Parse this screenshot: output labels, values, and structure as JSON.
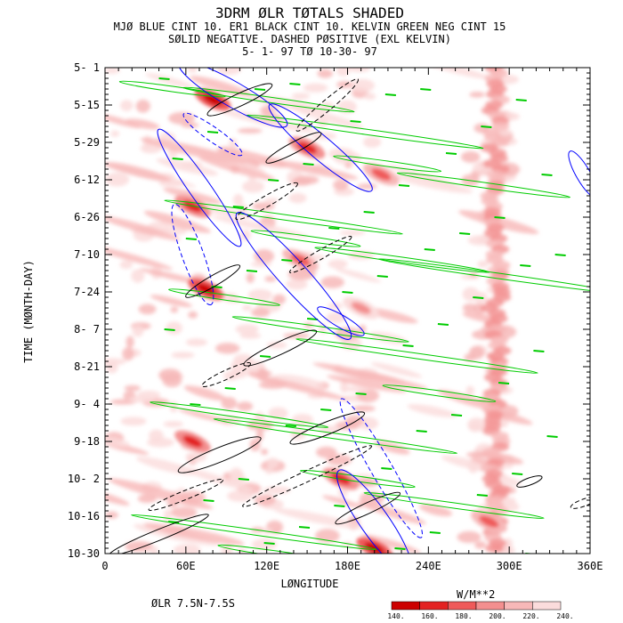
{
  "titles": {
    "line1": "3DRM ØLR TØTALS SHADED",
    "line2": "MJØ BLUE CINT 10. ER1 BLACK CINT 10. KELVIN GREEN NEG CINT 15",
    "line3": "SØLID NEGATIVE. DASHED PØSITIVE (EXL KELVIN)",
    "line4": "5- 1-  97 TØ 10-30-  97"
  },
  "footer": {
    "region": "ØLR 7.5N-7.5S"
  },
  "colors": {
    "mjo": "#0000ff",
    "er1": "#000000",
    "kelvin": "#00cc00",
    "shade_levels": [
      "#cc0000",
      "#e32222",
      "#ef5a5a",
      "#f38f8f",
      "#f7b8b8",
      "#fbdcdc"
    ]
  },
  "chart_data": {
    "type": "heatmap",
    "xlabel": "LØNGITUDE",
    "ylabel": "TIME (MØNTH-DAY)",
    "xlim": [
      0,
      360
    ],
    "x_ticks": [
      "0",
      "60E",
      "120E",
      "180E",
      "240E",
      "300E",
      "360E"
    ],
    "y_ticks": [
      "5- 1",
      "5-15",
      "5-29",
      "6-12",
      "6-26",
      "7-10",
      "7-24",
      "8- 7",
      "8-21",
      "9- 4",
      "9-18",
      "10- 2",
      "10-16",
      "10-30"
    ],
    "colorbar": {
      "unit": "W/M**2",
      "levels": [
        "140.",
        "160.",
        "180.",
        "200.",
        "220.",
        "240."
      ]
    },
    "shading_band_lon": [
      285,
      295
    ],
    "convective_blobs": [
      {
        "lon": 80,
        "t": 12,
        "level": 0
      },
      {
        "lon": 150,
        "t": 30,
        "level": 1
      },
      {
        "lon": 205,
        "t": 40,
        "level": 2
      },
      {
        "lon": 65,
        "t": 52,
        "level": 1
      },
      {
        "lon": 145,
        "t": 72,
        "level": 2
      },
      {
        "lon": 75,
        "t": 83,
        "level": 0
      },
      {
        "lon": 190,
        "t": 90,
        "level": 3
      },
      {
        "lon": 65,
        "t": 140,
        "level": 1
      },
      {
        "lon": 175,
        "t": 154,
        "level": 1
      },
      {
        "lon": 285,
        "t": 170,
        "level": 2
      },
      {
        "lon": 200,
        "t": 180,
        "level": 0
      }
    ]
  }
}
